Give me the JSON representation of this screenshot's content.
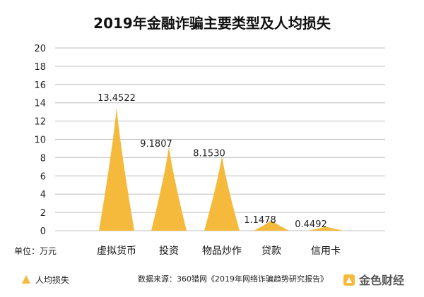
{
  "chart_data": {
    "type": "area",
    "title": "2019年金融诈骗主要类型及人均损失",
    "categories": [
      "虚拟货币",
      "投资",
      "物品炒作",
      "贷款",
      "信用卡"
    ],
    "series": [
      {
        "name": "人均损失",
        "values": [
          13.4522,
          9.1807,
          8.153,
          1.1478,
          0.4492
        ],
        "color": "#F5B93C"
      }
    ],
    "data_labels": [
      "13.4522",
      "9.1807",
      "8.1530",
      "1.1478",
      "0.4492"
    ],
    "ylim": [
      0,
      20
    ],
    "yticks": [
      "0",
      "2",
      "4",
      "6",
      "8",
      "10",
      "12",
      "14",
      "16",
      "18",
      "20"
    ],
    "unit_label": "单位：万元",
    "grid": true,
    "legend_position": "bottom-left"
  },
  "source": "数据来源：360猎网《2019年网络诈骗趋势研究报告》",
  "brand": {
    "name": "金色财经",
    "color": "#F5B93C"
  },
  "colors": {
    "grid": "#BFBFBF",
    "bar": "#F5B93C"
  }
}
